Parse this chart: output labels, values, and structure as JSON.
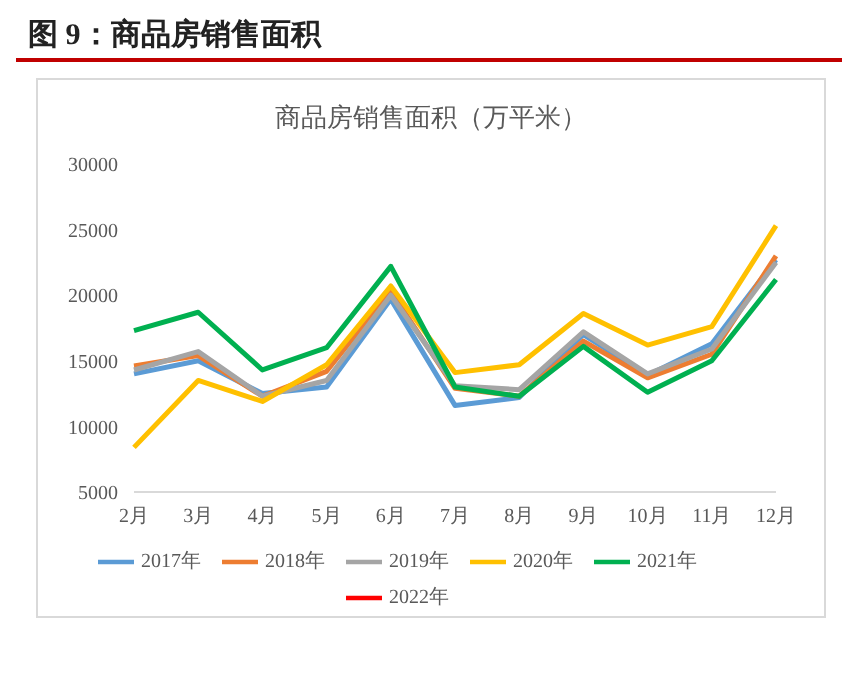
{
  "chart_data": {
    "type": "line",
    "title": "图 9：商品房销售面积",
    "subtitle": "商品房销售面积（万平米）",
    "categories": [
      "2月",
      "3月",
      "4月",
      "5月",
      "6月",
      "7月",
      "8月",
      "9月",
      "10月",
      "11月",
      "12月"
    ],
    "series": [
      {
        "name": "2017年",
        "color": "#5b9bd5",
        "values": [
          14000,
          15000,
          12500,
          13000,
          19700,
          11600,
          12200,
          17000,
          13900,
          16300,
          22700
        ]
      },
      {
        "name": "2018年",
        "color": "#ed7d31",
        "values": [
          14600,
          15400,
          12300,
          14200,
          20300,
          12900,
          12300,
          16500,
          13700,
          15500,
          23000
        ]
      },
      {
        "name": "2019年",
        "color": "#a5a5a5",
        "values": [
          14300,
          15700,
          12300,
          13500,
          20000,
          13100,
          12800,
          17200,
          14000,
          15900,
          22500
        ]
      },
      {
        "name": "2020年",
        "color": "#ffc000",
        "values": [
          8400,
          13500,
          11900,
          14700,
          20700,
          14100,
          14700,
          18600,
          16200,
          17600,
          25300
        ]
      },
      {
        "name": "2021年",
        "color": "#00b050",
        "values": [
          17300,
          18700,
          14300,
          16000,
          22200,
          13000,
          12300,
          16100,
          12600,
          15000,
          21200
        ]
      },
      {
        "name": "2022年",
        "color": "#ff0000",
        "values": [
          null,
          null,
          null,
          null,
          null,
          null,
          null,
          null,
          null,
          null,
          null
        ]
      }
    ],
    "ylim": [
      5000,
      30000
    ],
    "yticks": [
      5000,
      10000,
      15000,
      20000,
      25000,
      30000
    ],
    "grid": false,
    "legend": "bottom",
    "marker": "none",
    "line_style": "solid"
  }
}
